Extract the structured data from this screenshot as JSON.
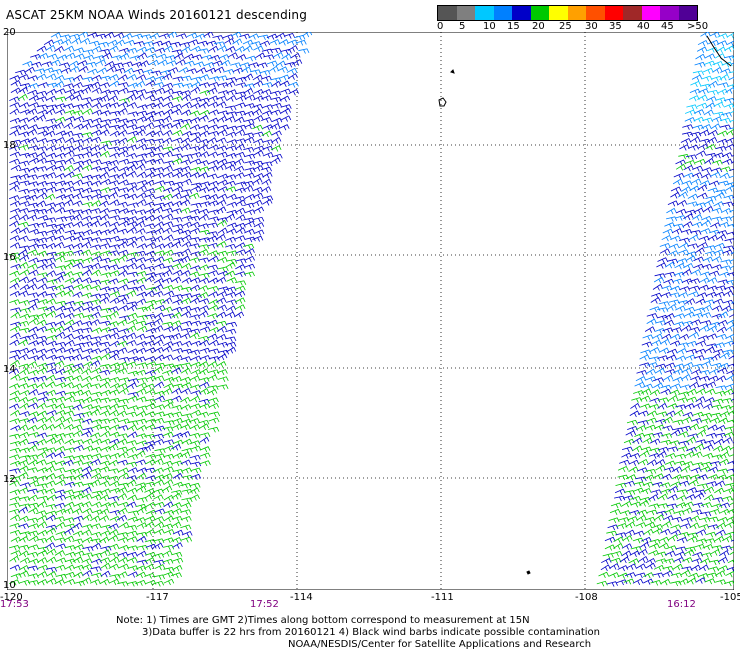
{
  "title": "ASCAT 25KM NOAA Winds 20160121 descending",
  "legend": {
    "labels": [
      "0",
      "5",
      "10",
      "15",
      "20",
      "25",
      "30",
      "35",
      "40",
      "45",
      ">50 knots"
    ],
    "colors": [
      "#555555",
      "#7f7f7f",
      "#00c8ff",
      "#0080ff",
      "#0000c8",
      "#00c800",
      "#ffff00",
      "#ffa000",
      "#ff5000",
      "#ff0000",
      "#a02828",
      "#ff00ff",
      "#9600c8",
      "#500096"
    ]
  },
  "axes": {
    "x_ticks": [
      "-120",
      "-117",
      "-114",
      "-111",
      "-108",
      "-105"
    ],
    "y_ticks": [
      "20",
      "18",
      "16",
      "14",
      "12",
      "10"
    ]
  },
  "times": [
    "17:53",
    "17:52",
    "16:12"
  ],
  "notes": [
    "Note: 1) Times are GMT 2)Times along bottom correspond to measurement at 15N",
    "3)Data buffer is 22 hrs from 20160121 4) Black wind barbs indicate possible contamination",
    "NOAA/NESDIS/Center for Satellite Applications and Research"
  ]
}
